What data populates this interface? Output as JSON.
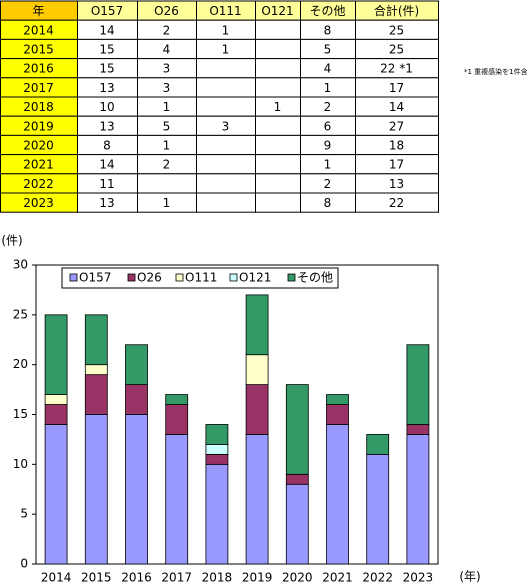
{
  "table": {
    "header": [
      "年",
      "O157",
      "O26",
      "O111",
      "O121",
      "その他",
      "合計(件)"
    ],
    "rows": [
      [
        "2014",
        14,
        2,
        1,
        null,
        8,
        25
      ],
      [
        "2015",
        15,
        4,
        1,
        null,
        5,
        25
      ],
      [
        "2016",
        15,
        3,
        null,
        null,
        4,
        "22 *1"
      ],
      [
        "2017",
        13,
        3,
        null,
        null,
        1,
        17
      ],
      [
        "2018",
        10,
        1,
        null,
        1,
        2,
        14
      ],
      [
        "2019",
        13,
        5,
        3,
        null,
        6,
        27
      ],
      [
        "2020",
        8,
        1,
        null,
        null,
        9,
        18
      ],
      [
        "2021",
        14,
        2,
        null,
        null,
        1,
        17
      ],
      [
        "2022",
        11,
        null,
        null,
        null,
        2,
        13
      ],
      [
        "2023",
        13,
        1,
        null,
        null,
        8,
        22
      ]
    ],
    "note": "*1 重複感染を1件含む"
  },
  "chart_data": {
    "type": "stacked_bar",
    "y_label": "(件)",
    "x_label": "(年)",
    "categories": [
      "2014",
      "2015",
      "2016",
      "2017",
      "2018",
      "2019",
      "2020",
      "2021",
      "2022",
      "2023"
    ],
    "series": [
      {
        "name": "O157",
        "color": "#9999ff",
        "values": [
          14,
          15,
          15,
          13,
          10,
          13,
          8,
          14,
          11,
          13
        ]
      },
      {
        "name": "O26",
        "color": "#993366",
        "values": [
          2,
          4,
          3,
          3,
          1,
          5,
          1,
          2,
          0,
          1
        ]
      },
      {
        "name": "O111",
        "color": "#ffffcc",
        "values": [
          1,
          1,
          0,
          0,
          0,
          3,
          0,
          0,
          0,
          0
        ]
      },
      {
        "name": "O121",
        "color": "#ccffff",
        "values": [
          0,
          0,
          0,
          0,
          1,
          0,
          0,
          0,
          0,
          0
        ]
      },
      {
        "name": "その他",
        "color": "#339966",
        "values": [
          8,
          5,
          4,
          1,
          2,
          6,
          9,
          1,
          2,
          8
        ]
      }
    ],
    "ylim": [
      0,
      30
    ],
    "yticks": [
      0,
      5,
      10,
      15,
      20,
      25,
      30
    ],
    "grid": false
  }
}
